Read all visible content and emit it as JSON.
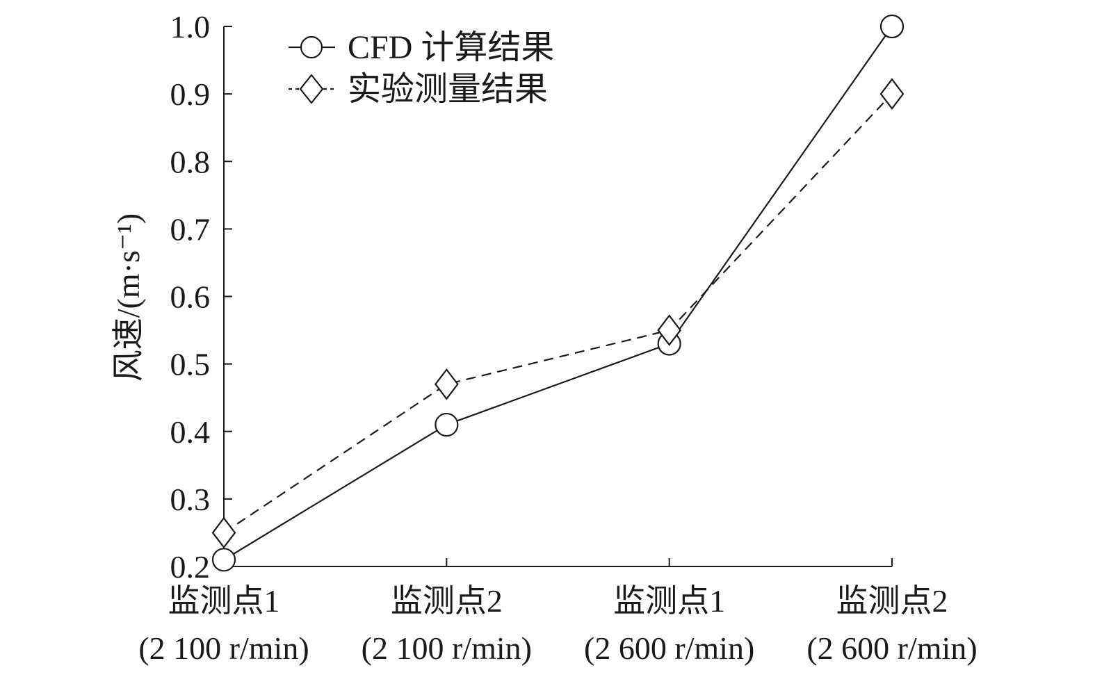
{
  "chart_data": {
    "type": "line",
    "categories": [
      [
        "监测点1",
        "(2 100 r/min)"
      ],
      [
        "监测点2",
        "(2 100 r/min)"
      ],
      [
        "监测点1",
        "(2 600 r/min)"
      ],
      [
        "监测点2",
        "(2 600 r/min)"
      ]
    ],
    "series": [
      {
        "name": "CFD 计算结果",
        "values": [
          0.21,
          0.41,
          0.53,
          1.0
        ],
        "line_style": "solid",
        "marker": "circle"
      },
      {
        "name": "实验测量结果",
        "values": [
          0.25,
          0.47,
          0.55,
          0.9
        ],
        "line_style": "dashed",
        "marker": "diamond"
      }
    ],
    "ylabel": "风速/(m·s⁻¹)",
    "ylim": [
      0.2,
      1.0
    ],
    "yticks": [
      "0.2",
      "0.3",
      "0.4",
      "0.5",
      "0.6",
      "0.7",
      "0.8",
      "0.9",
      "1.0"
    ],
    "grid": false,
    "legend_position": "top-left",
    "colors": {
      "line": "#1a1a1a",
      "background": "#ffffff"
    }
  }
}
